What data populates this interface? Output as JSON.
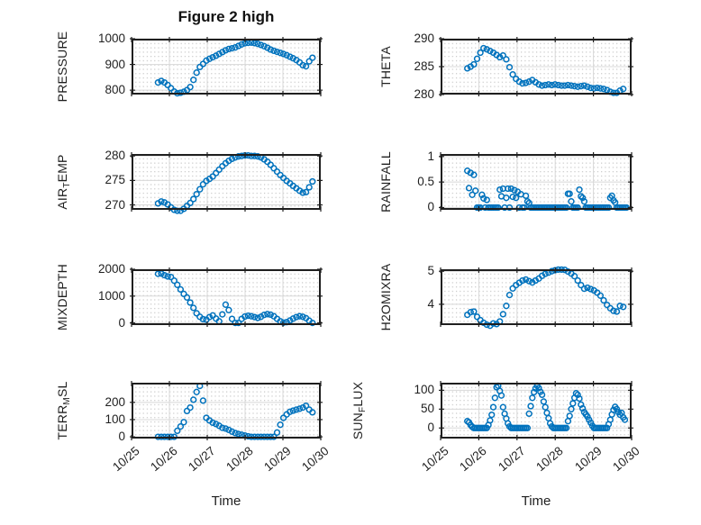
{
  "figure": {
    "title": "Figure 2 high",
    "xlabel": "Time",
    "xticklabels": [
      "10/25",
      "10/26",
      "10/27",
      "10/28",
      "10/29",
      "10/30"
    ],
    "marker_color": "#0072BD",
    "axes_color": "#1f1f1f",
    "grid_color": "#d8d8d8",
    "minor_dot_color": "#c6c6c6"
  },
  "chart_data": [
    {
      "name": "pressure",
      "type": "scatter",
      "ylabel": "PRESSURE",
      "ylabel_parts": [
        "PRESSURE"
      ],
      "yticks": [
        800,
        900,
        1000
      ],
      "ylim": [
        783,
        1000
      ],
      "xlim": [
        0,
        5
      ],
      "x_unit": "days_after_10/25",
      "x_start": 0.7,
      "x_step": 0.085,
      "y": [
        830,
        836,
        830,
        820,
        808,
        795,
        788,
        790,
        794,
        800,
        812,
        840,
        868,
        890,
        902,
        915,
        922,
        928,
        934,
        941,
        948,
        955,
        960,
        963,
        966,
        972,
        978,
        982,
        984,
        985,
        983,
        980,
        976,
        971,
        965,
        958,
        953,
        949,
        945,
        941,
        936,
        930,
        924,
        917,
        908,
        897,
        893,
        912,
        926
      ]
    },
    {
      "name": "theta",
      "type": "scatter",
      "ylabel": "THETA",
      "ylabel_parts": [
        "THETA"
      ],
      "yticks": [
        280,
        285,
        290
      ],
      "ylim": [
        280,
        290
      ],
      "xlim": [
        0,
        5
      ],
      "x_unit": "days_after_10/25",
      "x_start": 0.7,
      "x_step": 0.085,
      "y": [
        284.7,
        285.0,
        285.4,
        286.4,
        287.5,
        288.3,
        288.1,
        287.8,
        287.5,
        287.1,
        286.7,
        287.0,
        286.3,
        284.9,
        283.6,
        282.8,
        282.3,
        282.0,
        282.1,
        282.3,
        282.6,
        282.2,
        281.8,
        281.6,
        281.7,
        281.8,
        281.7,
        281.8,
        281.7,
        281.6,
        281.6,
        281.7,
        281.6,
        281.5,
        281.4,
        281.5,
        281.6,
        281.4,
        281.2,
        281.1,
        281.2,
        281.1,
        281.0,
        280.8,
        280.5,
        280.3,
        280.3,
        280.7,
        281.0
      ]
    },
    {
      "name": "air_temp",
      "type": "scatter",
      "ylabel": "AIR_TEMP",
      "ylabel_parts": [
        "AIR",
        {
          "sub": "T"
        },
        "EMP"
      ],
      "yticks": [
        270,
        275,
        280
      ],
      "ylim": [
        269,
        280.4
      ],
      "xlim": [
        0,
        5
      ],
      "x_unit": "days_after_10/25",
      "x_start": 0.7,
      "x_step": 0.085,
      "y": [
        270.3,
        270.7,
        270.5,
        270.1,
        269.5,
        269.0,
        268.8,
        268.8,
        269.2,
        269.8,
        270.4,
        271.2,
        272.2,
        273.2,
        274.2,
        274.9,
        275.3,
        275.8,
        276.5,
        277.2,
        277.9,
        278.5,
        279.0,
        279.4,
        279.7,
        279.9,
        280.0,
        280.1,
        280.1,
        280.0,
        280.0,
        279.9,
        279.7,
        279.3,
        278.8,
        278.2,
        277.5,
        276.8,
        276.1,
        275.5,
        274.9,
        274.4,
        273.9,
        273.4,
        272.9,
        272.5,
        272.6,
        273.6,
        274.8
      ]
    },
    {
      "name": "rainfall",
      "type": "scatter",
      "ylabel": "RAINFALL",
      "ylabel_parts": [
        "RAINFALL"
      ],
      "yticks": [
        0,
        0.5,
        1
      ],
      "ylim": [
        -0.045,
        1.05
      ],
      "xlim": [
        0,
        5
      ],
      "x_unit": "days_after_10/25",
      "x_start": 0.7,
      "x_step": 0.0425,
      "y": [
        0.72,
        0.38,
        0.68,
        0.25,
        0.64,
        0.33,
        0,
        0,
        0,
        0.25,
        0.18,
        0,
        0.15,
        0,
        0,
        0,
        0,
        0,
        0,
        0,
        0.35,
        0.22,
        0.37,
        0,
        0.19,
        0.37,
        0,
        0.37,
        0.21,
        0.34,
        0.19,
        0.31,
        0,
        0.26,
        0,
        0,
        0.23,
        0.12,
        0.09,
        0,
        0,
        0,
        0,
        0,
        0,
        0,
        0,
        0,
        0,
        0,
        0,
        0,
        0,
        0,
        0,
        0,
        0,
        0,
        0,
        0,
        0,
        0,
        0.27,
        0.27,
        0.12,
        0,
        0,
        0,
        0,
        0.35,
        0.22,
        0.19,
        0.12,
        0,
        0,
        0,
        0,
        0,
        0,
        0,
        0,
        0,
        0,
        0,
        0,
        0,
        0,
        0,
        0.19,
        0.23,
        0.14,
        0.1,
        0,
        0,
        0,
        0,
        0,
        0,
        0
      ]
    },
    {
      "name": "mixdepth",
      "type": "scatter",
      "ylabel": "MIXDEPTH",
      "ylabel_parts": [
        "MIXDEPTH"
      ],
      "yticks": [
        0,
        1000,
        2000
      ],
      "ylim": [
        -80,
        2000
      ],
      "xlim": [
        0,
        5
      ],
      "x_unit": "days_after_10/25",
      "x_start": 0.7,
      "x_step": 0.085,
      "y": [
        1830,
        1840,
        1780,
        1730,
        1710,
        1575,
        1420,
        1250,
        1080,
        950,
        760,
        560,
        360,
        230,
        140,
        120,
        220,
        280,
        160,
        60,
        320,
        680,
        480,
        150,
        0,
        0,
        150,
        240,
        270,
        250,
        220,
        190,
        230,
        300,
        330,
        310,
        250,
        150,
        60,
        10,
        30,
        90,
        160,
        220,
        250,
        230,
        180,
        80,
        0
      ]
    },
    {
      "name": "h2omixra",
      "type": "scatter",
      "ylabel": "H2OMIXRA",
      "ylabel_parts": [
        "H2OMIXRA"
      ],
      "yticks": [
        4,
        5
      ],
      "ylim": [
        3.37,
        5.06
      ],
      "xlim": [
        0,
        5
      ],
      "x_unit": "days_after_10/25",
      "x_start": 0.7,
      "x_step": 0.085,
      "y": [
        3.68,
        3.76,
        3.78,
        3.62,
        3.52,
        3.44,
        3.38,
        3.35,
        3.42,
        3.4,
        3.48,
        3.7,
        3.95,
        4.28,
        4.48,
        4.58,
        4.65,
        4.72,
        4.75,
        4.7,
        4.66,
        4.72,
        4.78,
        4.86,
        4.92,
        4.96,
        5.0,
        5.03,
        5.05,
        5.05,
        5.04,
        4.99,
        4.93,
        4.85,
        4.72,
        4.58,
        4.47,
        4.5,
        4.46,
        4.42,
        4.35,
        4.26,
        4.12,
        3.98,
        3.88,
        3.8,
        3.78,
        3.95,
        3.92
      ]
    },
    {
      "name": "terr_msl",
      "type": "scatter",
      "ylabel": "TERR_MSL",
      "ylabel_parts": [
        "TERR",
        {
          "sub": "M"
        },
        "SL"
      ],
      "yticks": [
        0,
        100,
        200
      ],
      "ylim": [
        -10,
        314
      ],
      "xlim": [
        0,
        5
      ],
      "x_unit": "days_after_10/25",
      "x_start": 0.7,
      "x_step": 0.085,
      "y": [
        0,
        0,
        0,
        0,
        0,
        0,
        35,
        60,
        85,
        150,
        170,
        215,
        260,
        295,
        210,
        110,
        95,
        82,
        74,
        64,
        52,
        48,
        40,
        30,
        22,
        16,
        12,
        8,
        3,
        0,
        0,
        0,
        0,
        0,
        0,
        0,
        0,
        25,
        70,
        110,
        130,
        145,
        152,
        158,
        163,
        170,
        180,
        158,
        142
      ]
    },
    {
      "name": "sun_flux",
      "type": "scatter",
      "ylabel": "SUN_FLUX",
      "ylabel_parts": [
        "SUN",
        {
          "sub": "F"
        },
        "LUX"
      ],
      "yticks": [
        0,
        50,
        100
      ],
      "ylim": [
        -28,
        120
      ],
      "xlim": [
        0,
        5
      ],
      "x_unit": "days_after_10/25",
      "x_start": 0.7,
      "x_step": 0.0425,
      "y": [
        18,
        15,
        8,
        3,
        0,
        0,
        0,
        0,
        0,
        0,
        0,
        0,
        0,
        8,
        20,
        35,
        55,
        80,
        108,
        112,
        98,
        86,
        55,
        38,
        25,
        12,
        4,
        0,
        0,
        0,
        0,
        0,
        0,
        0,
        0,
        0,
        0,
        0,
        38,
        58,
        80,
        95,
        105,
        112,
        106,
        96,
        88,
        70,
        55,
        40,
        26,
        12,
        4,
        0,
        0,
        0,
        0,
        0,
        0,
        0,
        0,
        0,
        18,
        32,
        50,
        65,
        80,
        92,
        88,
        78,
        62,
        52,
        42,
        36,
        30,
        22,
        14,
        6,
        0,
        0,
        0,
        0,
        0,
        0,
        0,
        0,
        0,
        10,
        22,
        36,
        48,
        56,
        50,
        42,
        35,
        40,
        28,
        22
      ]
    }
  ]
}
